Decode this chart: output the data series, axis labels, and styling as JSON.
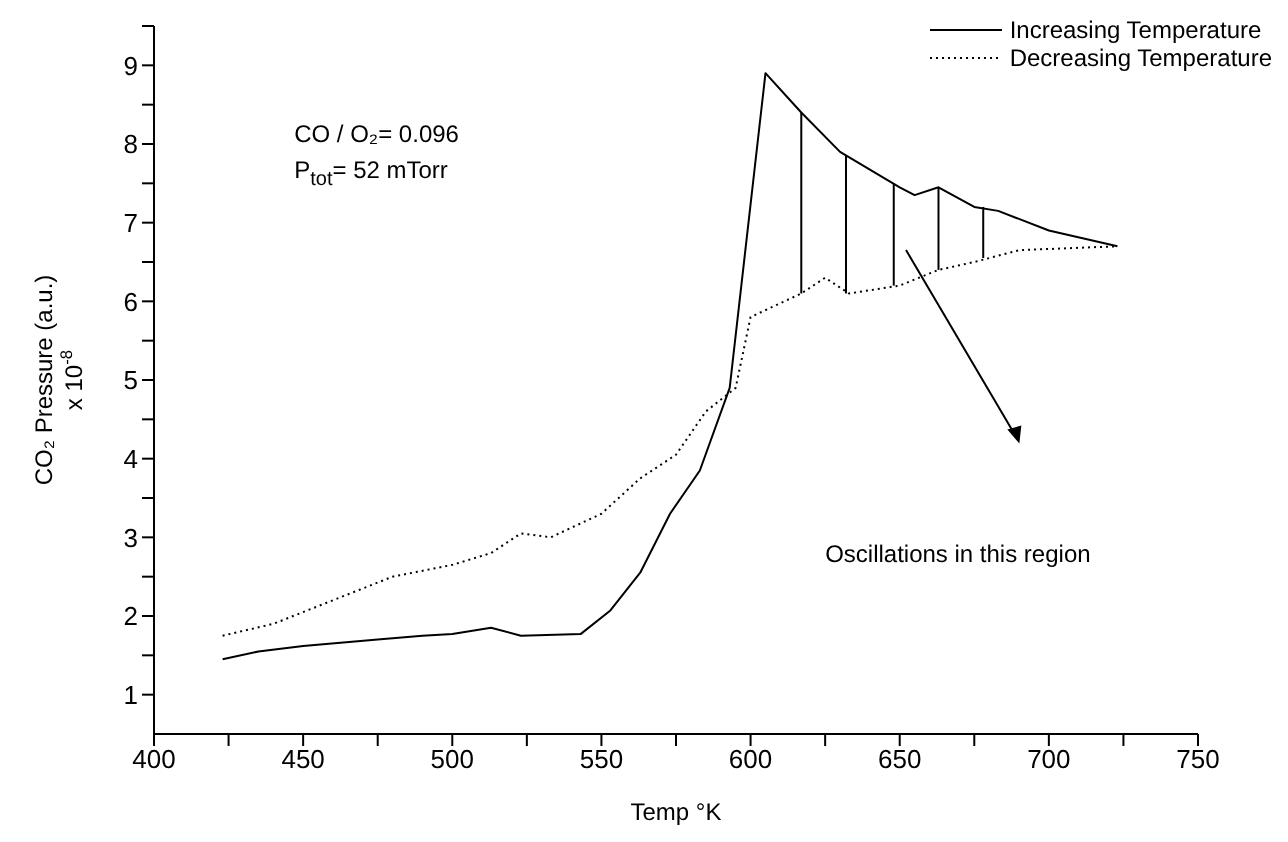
{
  "chart_data": {
    "type": "line",
    "xlabel": "Temp °K",
    "ylabel": "CO₂ Pressure (a.u.)\nx 10$^{-8}$",
    "annotations": [
      "CO / O₂= 0.096",
      "P$_{tot}$= 52 mTorr",
      "Oscillations in this region"
    ],
    "xlim": [
      400,
      750
    ],
    "xticks": [
      400,
      {
        "value": 425,
        "label": null
      },
      450,
      {
        "value": 475,
        "label": null
      },
      500,
      {
        "value": 525,
        "label": null
      },
      550,
      {
        "value": 575,
        "label": null
      },
      600,
      {
        "value": 625,
        "label": null
      },
      650,
      {
        "value": 675,
        "label": null
      },
      700,
      {
        "value": 725,
        "label": null
      },
      750
    ],
    "ylim": [
      0.5,
      9.5
    ],
    "yticks": [
      1,
      {
        "value": 1.5,
        "label": null
      },
      2,
      {
        "value": 2.5,
        "label": null
      },
      3,
      {
        "value": 3.5,
        "label": null
      },
      4,
      {
        "value": 4.5,
        "label": null
      },
      5,
      {
        "value": 5.5,
        "label": null
      },
      6,
      {
        "value": 6.5,
        "label": null
      },
      7,
      {
        "value": 7.5,
        "label": null
      },
      8,
      {
        "value": 8.5,
        "label": null
      },
      9,
      {
        "value": 9.5,
        "label": null
      }
    ],
    "grid": false,
    "legend": "top right",
    "marker": "none",
    "series": [
      {
        "name": "Increasing Temperature",
        "color": "#000000",
        "line_style": "solid",
        "x": [
          423,
          435,
          450,
          475,
          490,
          500,
          513,
          523,
          543,
          553,
          563,
          573,
          583,
          593,
          605,
          617,
          630,
          650,
          655,
          663,
          675,
          683,
          700,
          723
        ],
        "values": [
          1.45,
          1.55,
          1.62,
          1.7,
          1.75,
          1.77,
          1.85,
          1.75,
          1.77,
          2.07,
          2.55,
          3.3,
          3.85,
          4.9,
          8.9,
          8.4,
          7.9,
          7.45,
          7.35,
          7.45,
          7.2,
          7.15,
          6.9,
          6.7
        ]
      },
      {
        "name": "Decreasing Temperature",
        "color": "#000000",
        "line_style": "dotted",
        "x": [
          423,
          440,
          460,
          480,
          500,
          513,
          523,
          533,
          550,
          563,
          575,
          585,
          595,
          600,
          617,
          625,
          633,
          650,
          663,
          675,
          690,
          723
        ],
        "values": [
          1.75,
          1.9,
          2.2,
          2.5,
          2.65,
          2.8,
          3.05,
          3.0,
          3.3,
          3.75,
          4.05,
          4.6,
          4.9,
          5.8,
          6.1,
          6.3,
          6.1,
          6.2,
          6.4,
          6.5,
          6.65,
          6.7
        ]
      },
      {
        "color": "#000000",
        "line_style": "solid",
        "x": [
          617,
          617
        ],
        "values": [
          6.1,
          8.4
        ]
      },
      {
        "color": "#000000",
        "line_style": "solid",
        "x": [
          632,
          632
        ],
        "values": [
          6.1,
          7.85
        ]
      },
      {
        "color": "#000000",
        "line_style": "solid",
        "x": [
          648,
          648
        ],
        "values": [
          6.2,
          7.5
        ]
      },
      {
        "color": "#000000",
        "line_style": "solid",
        "x": [
          663,
          663
        ],
        "values": [
          6.4,
          7.45
        ]
      },
      {
        "color": "#000000",
        "line_style": "solid",
        "x": [
          678,
          678
        ],
        "values": [
          6.55,
          7.2
        ]
      }
    ]
  }
}
